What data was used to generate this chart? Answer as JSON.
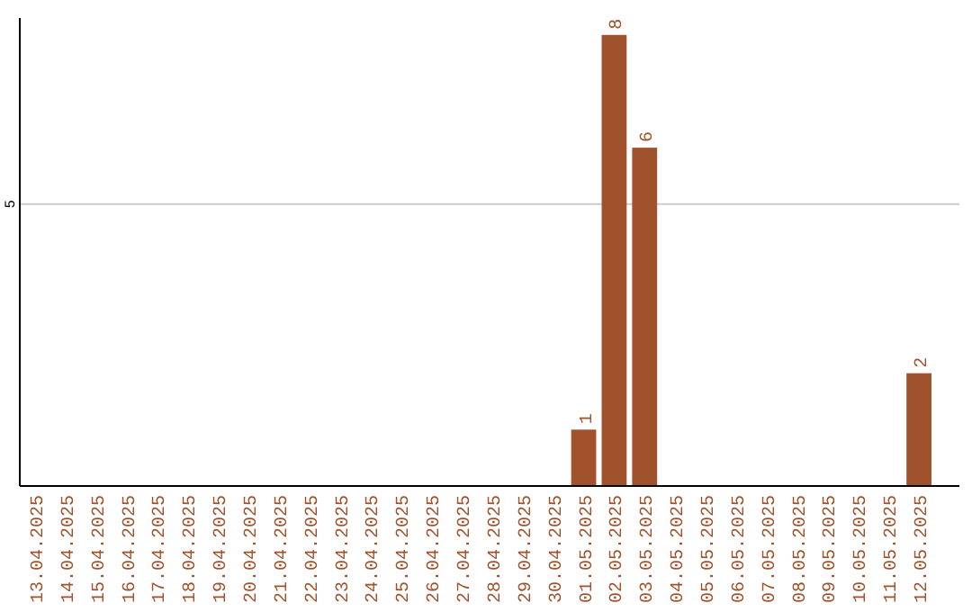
{
  "chart_data": {
    "type": "bar",
    "categories": [
      "13.04.2025",
      "14.04.2025",
      "15.04.2025",
      "16.04.2025",
      "17.04.2025",
      "18.04.2025",
      "19.04.2025",
      "20.04.2025",
      "21.04.2025",
      "22.04.2025",
      "23.04.2025",
      "24.04.2025",
      "25.04.2025",
      "26.04.2025",
      "27.04.2025",
      "28.04.2025",
      "29.04.2025",
      "30.04.2025",
      "01.05.2025",
      "02.05.2025",
      "03.05.2025",
      "04.05.2025",
      "05.05.2025",
      "06.05.2025",
      "07.05.2025",
      "08.05.2025",
      "09.05.2025",
      "10.05.2025",
      "11.05.2025",
      "12.05.2025"
    ],
    "values": [
      null,
      null,
      null,
      null,
      null,
      null,
      null,
      null,
      null,
      null,
      null,
      null,
      null,
      null,
      null,
      null,
      null,
      null,
      1,
      8,
      6,
      null,
      null,
      null,
      null,
      null,
      null,
      null,
      null,
      2
    ],
    "value_labels": [
      null,
      null,
      null,
      null,
      null,
      null,
      null,
      null,
      null,
      null,
      null,
      null,
      null,
      null,
      null,
      null,
      null,
      null,
      "1",
      "8",
      "6",
      null,
      null,
      null,
      null,
      null,
      null,
      null,
      null,
      "2"
    ],
    "color": "#a0522d",
    "ylim": [
      0,
      8.3
    ],
    "yticks": [
      5
    ],
    "grid": "y"
  }
}
